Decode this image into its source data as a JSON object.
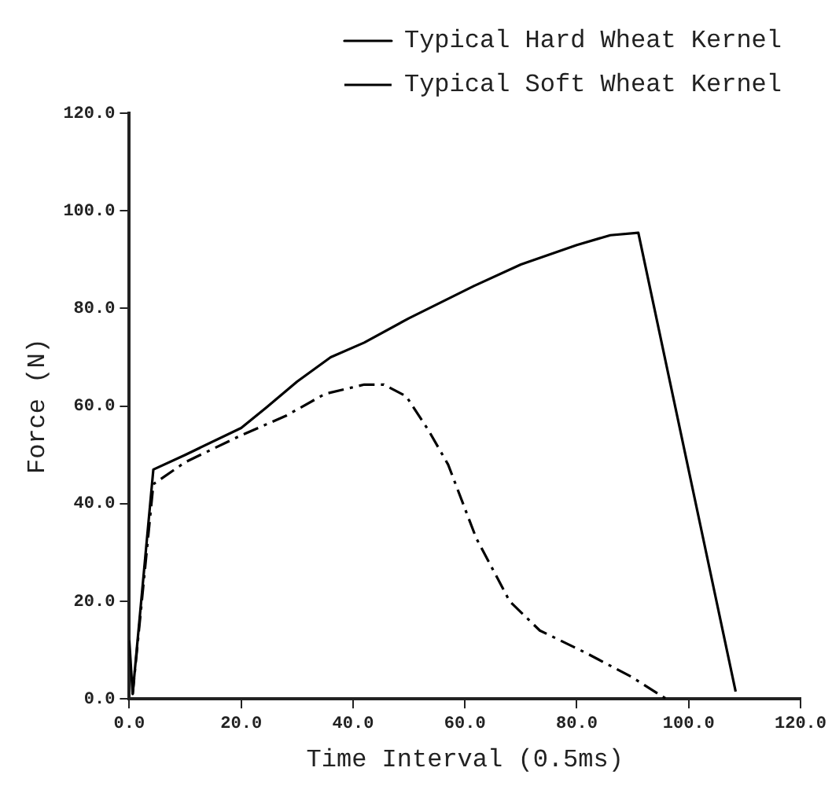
{
  "chart_data": {
    "type": "line",
    "xlabel": "Time Interval (0.5ms)",
    "ylabel": "Force (N)",
    "xlim": [
      0,
      120
    ],
    "ylim": [
      0,
      120
    ],
    "xticks": [
      {
        "value": 0,
        "label": "0.0"
      },
      {
        "value": 20,
        "label": "20.0"
      },
      {
        "value": 40,
        "label": "40.0"
      },
      {
        "value": 60,
        "label": "60.0"
      },
      {
        "value": 80,
        "label": "80.0"
      },
      {
        "value": 100,
        "label": "100.0"
      },
      {
        "value": 120,
        "label": "120.0"
      }
    ],
    "yticks": [
      {
        "value": 0,
        "label": "0.0"
      },
      {
        "value": 20,
        "label": "20.0"
      },
      {
        "value": 40,
        "label": "40.0"
      },
      {
        "value": 60,
        "label": "60.0"
      },
      {
        "value": 80,
        "label": "80.0"
      },
      {
        "value": 100,
        "label": "100.0"
      },
      {
        "value": 120,
        "label": "120.0"
      }
    ],
    "grid": false,
    "legend": "top right",
    "marker": "none",
    "series": [
      {
        "name": "Typical Hard Wheat Kernel",
        "color": "#000000",
        "line_style": "solid",
        "x": [
          0,
          0.6,
          4.3,
          10,
          20,
          24.5,
          30,
          36,
          42,
          50,
          61.6,
          70,
          80,
          86,
          91,
          108.4
        ],
        "values": [
          12,
          1,
          47,
          50,
          55.5,
          59.7,
          65,
          70,
          73,
          78,
          84.6,
          89,
          93,
          95,
          95.5,
          1.5
        ]
      },
      {
        "name": "Typical Soft Wheat Kernel",
        "color": "#000000",
        "line_style": "dashed",
        "x": [
          0.6,
          4.3,
          10,
          20,
          28,
          35,
          42,
          45.5,
          49.5,
          53.5,
          57,
          62,
          68,
          73.4,
          81.5,
          89.8,
          96
        ],
        "values": [
          1,
          44,
          48.5,
          54,
          58,
          62.5,
          64.4,
          64.4,
          62,
          55,
          48,
          33,
          20,
          14,
          9.5,
          4.5,
          0
        ]
      }
    ]
  }
}
